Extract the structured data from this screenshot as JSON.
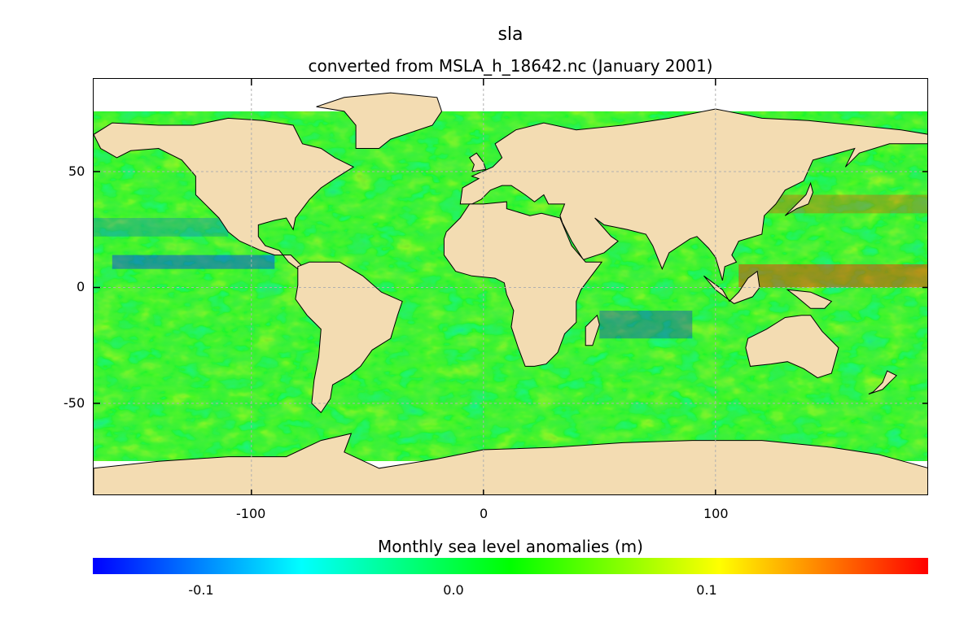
{
  "title": "sla",
  "subtitle": "converted from MSLA_h_18642.nc (January 2001)",
  "map": {
    "projection": "equirectangular",
    "lon_range": [
      -168,
      192
    ],
    "lat_range": [
      -90,
      90
    ],
    "land_color": "#f3dcb2",
    "missing_color": "#ffffff",
    "coastline_color": "#000000",
    "gridlines": "dashed light grey",
    "x_ticks": [
      -100,
      0,
      100
    ],
    "y_ticks": [
      50,
      0,
      -50
    ],
    "x_tick_labels": [
      "-100",
      "0",
      "100"
    ],
    "y_tick_labels": [
      "50",
      "0",
      "-50"
    ],
    "field": "sla"
  },
  "colorbar": {
    "label": "Monthly sea level anomalies (m)",
    "range": [
      -0.18,
      0.18
    ],
    "colormap": "jet",
    "colors": [
      "#0000ff",
      "#00ffff",
      "#00ff00",
      "#ffff00",
      "#ff0000"
    ],
    "ticks": [
      -0.1,
      0.0,
      0.1
    ],
    "tick_labels": [
      "-0.1",
      "0.0",
      "0.1"
    ]
  }
}
